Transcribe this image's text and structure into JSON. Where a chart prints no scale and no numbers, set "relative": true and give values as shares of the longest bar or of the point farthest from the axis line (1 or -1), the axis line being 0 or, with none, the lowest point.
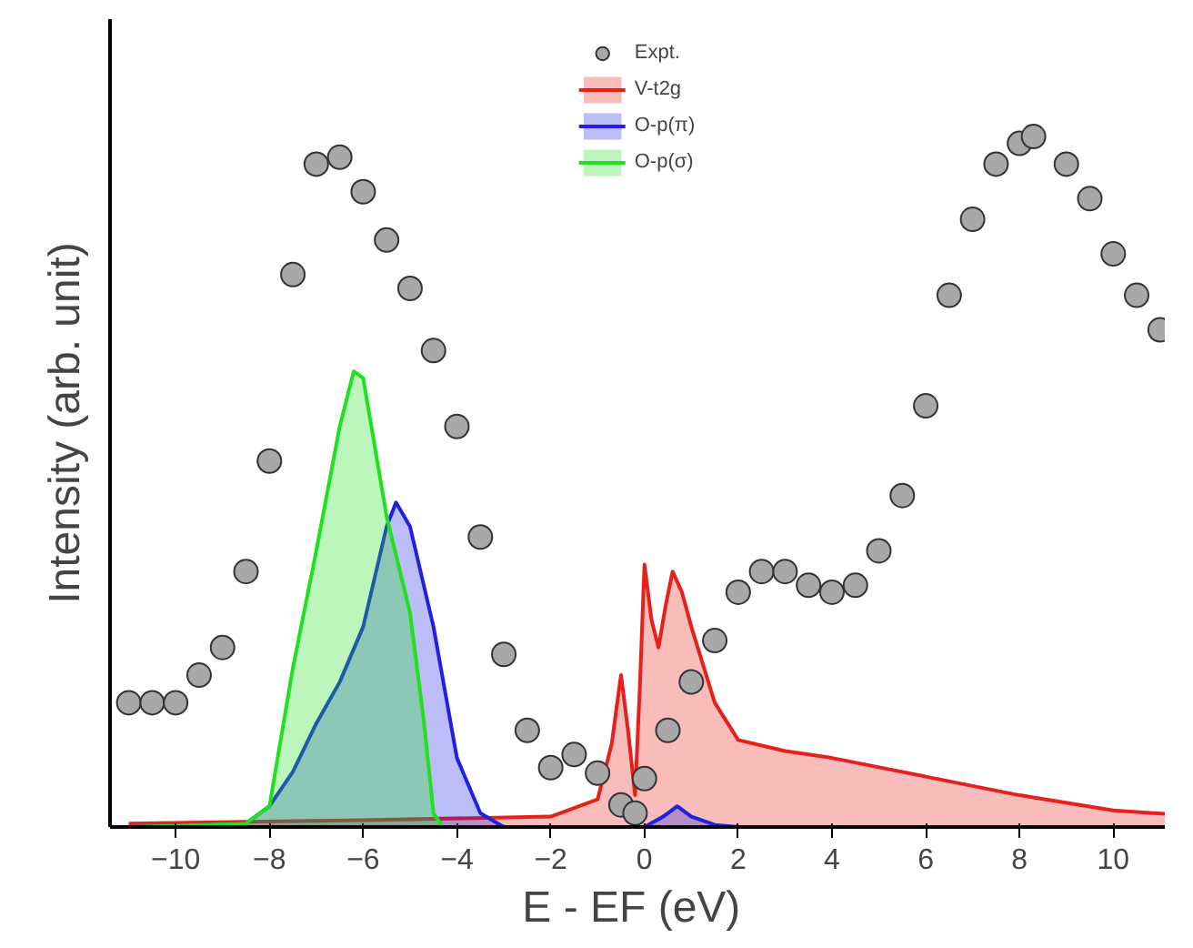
{
  "chart_data": {
    "type": "area",
    "relative": true,
    "xlabel": "E - EF  (eV)",
    "ylabel": "Intensity (arb. unit)",
    "xlim": [
      -11.4,
      11.1
    ],
    "xticks": [
      -10,
      -8,
      -6,
      -4,
      -2,
      0,
      2,
      4,
      6,
      8,
      10
    ],
    "grid": false,
    "legend": "top",
    "series": [
      {
        "name": "Expt.",
        "type": "scatter",
        "marker": "circle",
        "color": "#a8a8a8",
        "x": [
          -11,
          -10.5,
          -10,
          -9.5,
          -9,
          -8.5,
          -8,
          -7.5,
          -7,
          -6.5,
          -6,
          -5.5,
          -5,
          -4.5,
          -4,
          -3.5,
          -3,
          -2.5,
          -2,
          -1.5,
          -1,
          -0.5,
          -0.2,
          0,
          0.5,
          1,
          1.5,
          2,
          2.5,
          3,
          3.5,
          4,
          4.5,
          5,
          5.5,
          6,
          6.5,
          7,
          7.5,
          8,
          8.3,
          9,
          9.5,
          10,
          10.5,
          11
        ],
        "values": [
          0.18,
          0.18,
          0.18,
          0.22,
          0.26,
          0.37,
          0.53,
          0.8,
          0.96,
          0.97,
          0.92,
          0.85,
          0.78,
          0.69,
          0.58,
          0.42,
          0.25,
          0.14,
          0.086,
          0.105,
          0.078,
          0.032,
          0.02,
          0.07,
          0.14,
          0.21,
          0.27,
          0.34,
          0.37,
          0.37,
          0.35,
          0.34,
          0.35,
          0.4,
          0.48,
          0.61,
          0.77,
          0.88,
          0.96,
          0.99,
          1.0,
          0.96,
          0.91,
          0.83,
          0.77,
          0.72
        ]
      },
      {
        "name": "V-t2g",
        "color": "#e8201c",
        "x": [
          -11,
          -6,
          -2,
          -1,
          -0.7,
          -0.5,
          -0.35,
          -0.2,
          -0.1,
          0,
          0.15,
          0.3,
          0.45,
          0.6,
          0.8,
          1,
          1.5,
          2,
          3,
          4,
          6,
          8,
          10,
          11.1
        ],
        "values": [
          0.005,
          0.01,
          0.015,
          0.04,
          0.12,
          0.22,
          0.14,
          0.046,
          0.2,
          0.38,
          0.3,
          0.26,
          0.32,
          0.37,
          0.34,
          0.29,
          0.18,
          0.126,
          0.11,
          0.1,
          0.073,
          0.046,
          0.024,
          0.019
        ]
      },
      {
        "name": "O-p(π)",
        "color": "#2020e0",
        "x": [
          -11,
          -8.5,
          -8,
          -7.5,
          -7,
          -6.5,
          -6,
          -5.5,
          -5.3,
          -5,
          -4.5,
          -4,
          -3.5,
          -3,
          0,
          0.4,
          0.7,
          1,
          1.5,
          2
        ],
        "values": [
          0,
          0.005,
          0.03,
          0.08,
          0.15,
          0.21,
          0.29,
          0.435,
          0.47,
          0.435,
          0.29,
          0.1,
          0.02,
          0,
          0,
          0.015,
          0.03,
          0.015,
          0.003,
          0
        ]
      },
      {
        "name": "O-p(σ)",
        "color": "#20e020",
        "x": [
          -11,
          -8.5,
          -8,
          -7.5,
          -7,
          -6.5,
          -6.2,
          -6,
          -5.5,
          -5,
          -4.7,
          -4.5,
          -4.3,
          -3
        ],
        "values": [
          0,
          0.005,
          0.03,
          0.23,
          0.4,
          0.58,
          0.66,
          0.65,
          0.45,
          0.31,
          0.15,
          0.02,
          0,
          0
        ]
      }
    ]
  }
}
